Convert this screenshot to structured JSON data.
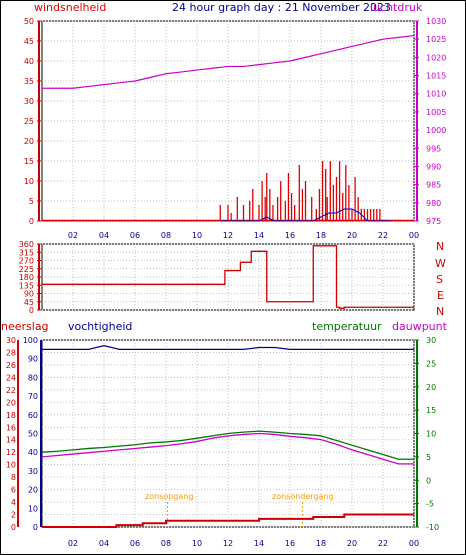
{
  "header": {
    "left_label": "windsnelheid",
    "title": "24 hour graph day : 21 November 2023",
    "right_label": "luchtdruk"
  },
  "panel2": {
    "direction_labels": [
      "N",
      "W",
      "S",
      "E",
      "N"
    ]
  },
  "panel3": {
    "label_neerslag": "neerslag",
    "label_vochtigheid": "vochtigheid",
    "label_temperatuur": "temperatuur",
    "label_dauwpunt": "dauwpunt",
    "zonsopgang": "zonsopgang",
    "zonsondergang": "zonsondergang"
  },
  "colors": {
    "wind": "#e00000",
    "pressure": "#cc00cc",
    "humidity": "#000099",
    "temperature": "#007700",
    "dewpoint": "#cc00cc",
    "rain": "#cc0000",
    "sun": "#ff9900",
    "wind_avg": "#0000cc",
    "grid": "#c0c0c0"
  },
  "chart_data": [
    {
      "type": "line",
      "name": "wind-and-pressure",
      "x_tick_labels": [
        "02",
        "04",
        "06",
        "08",
        "10",
        "12",
        "14",
        "16",
        "18",
        "20",
        "22",
        "00"
      ],
      "left_axis": {
        "label": "windsnelheid",
        "ylim": [
          0,
          50
        ],
        "ticks": [
          0,
          5,
          10,
          15,
          20,
          25,
          30,
          35,
          40,
          45,
          50
        ]
      },
      "right_axis": {
        "label": "luchtdruk",
        "ylim": [
          975,
          1030
        ],
        "ticks": [
          975,
          980,
          985,
          990,
          995,
          1000,
          1005,
          1010,
          1015,
          1020,
          1025,
          1030
        ]
      },
      "series": [
        {
          "name": "luchtdruk",
          "axis": "right",
          "x": [
            0,
            1,
            2,
            3,
            4,
            5,
            6,
            7,
            8,
            9,
            10,
            11,
            12,
            13,
            14,
            15,
            16,
            17,
            18,
            19,
            20,
            21,
            22,
            23,
            24
          ],
          "y": [
            1011.5,
            1011.5,
            1011.5,
            1012,
            1012.5,
            1013,
            1013.5,
            1014.5,
            1015.5,
            1016,
            1016.5,
            1017,
            1017.5,
            1017.5,
            1018,
            1018.5,
            1019,
            1020,
            1021,
            1022,
            1023,
            1024,
            1025,
            1025.5,
            1026
          ]
        },
        {
          "name": "windstoten",
          "axis": "left",
          "x_gust": [
            11.5,
            12,
            12.2,
            12.6,
            13,
            13.4,
            13.6,
            14,
            14.2,
            14.4,
            14.5,
            14.7,
            14.9,
            15.2,
            15.4,
            15.7,
            15.9,
            16.1,
            16.3,
            16.6,
            16.8,
            17.0,
            17.4,
            17.7,
            17.9,
            18.1,
            18.3,
            18.4,
            18.6,
            18.8,
            19.0,
            19.2,
            19.4,
            19.6,
            19.8,
            20.0,
            20.2,
            20.4,
            20.6,
            20.8,
            21.0,
            21.2,
            21.4,
            21.6,
            21.8
          ],
          "y_gust": [
            4,
            4,
            2,
            6,
            4,
            5,
            8,
            4,
            10,
            6,
            12,
            8,
            4,
            6,
            10,
            5,
            12,
            7,
            4,
            14,
            8,
            10,
            6,
            3,
            8,
            15,
            13,
            6,
            15,
            9,
            11,
            15,
            7,
            14,
            9,
            3,
            11,
            6,
            3,
            3,
            3,
            3,
            3,
            3,
            3
          ]
        },
        {
          "name": "gemiddelde wind",
          "axis": "left",
          "x": [
            11.5,
            12,
            13,
            14,
            14.5,
            15,
            16,
            17,
            17.5,
            18,
            18.5,
            19,
            19.5,
            20,
            20.5,
            21,
            22,
            22.5
          ],
          "y": [
            0,
            0,
            0,
            0,
            1,
            0,
            0,
            0,
            0,
            1,
            2,
            2,
            3,
            3,
            2,
            0,
            0,
            0
          ]
        }
      ]
    },
    {
      "type": "line",
      "name": "wind-direction",
      "x_tick_labels": [
        "02",
        "04",
        "06",
        "08",
        "10",
        "12",
        "14",
        "16",
        "18",
        "20",
        "22",
        "00"
      ],
      "ylim": [
        0,
        360
      ],
      "y_ticks": [
        0,
        45,
        90,
        135,
        180,
        225,
        270,
        315,
        360
      ],
      "series": [
        {
          "name": "windrichting",
          "x": [
            0,
            11.8,
            11.8,
            12.8,
            12.8,
            13.5,
            13.5,
            14.5,
            14.5,
            17.5,
            17.5,
            19.0,
            19.0,
            19.2,
            19.2,
            19.5,
            19.5,
            24
          ],
          "y": [
            140,
            140,
            215,
            215,
            260,
            260,
            320,
            320,
            45,
            45,
            350,
            350,
            15,
            15,
            10,
            10,
            15,
            15
          ]
        }
      ]
    },
    {
      "type": "line",
      "name": "humidity-temperature-rain",
      "x_tick_labels": [
        "02",
        "04",
        "06",
        "08",
        "10",
        "12",
        "14",
        "16",
        "18",
        "20",
        "22",
        "00"
      ],
      "left_axis_outer": {
        "label": "neerslag",
        "ylim": [
          0,
          30
        ],
        "ticks": [
          0,
          2,
          4,
          6,
          8,
          10,
          12,
          14,
          16,
          18,
          20,
          22,
          24,
          26,
          28,
          30
        ]
      },
      "left_axis_inner": {
        "label": "vochtigheid",
        "ylim": [
          0,
          100
        ],
        "ticks": [
          0,
          10,
          20,
          30,
          40,
          50,
          60,
          70,
          80,
          90,
          100
        ]
      },
      "right_axis": {
        "label": "temperatuur",
        "ylim": [
          -10,
          30
        ],
        "ticks": [
          -10,
          -5,
          0,
          5,
          10,
          15,
          20,
          25,
          30
        ]
      },
      "sun_events": {
        "zonsopgang_hour": 8.1,
        "zonsondergang_hour": 16.8
      },
      "series": [
        {
          "name": "vochtigheid",
          "axis": "inner",
          "x": [
            0,
            1,
            2,
            3,
            4,
            5,
            6,
            7,
            8,
            9,
            10,
            11,
            12,
            13,
            14,
            15,
            16,
            17,
            18,
            19,
            20,
            21,
            22,
            23,
            24
          ],
          "y": [
            95,
            95,
            95,
            95,
            97,
            95,
            95,
            95,
            95,
            95,
            95,
            95,
            95,
            95,
            96,
            96,
            95,
            95,
            95,
            95,
            95,
            95,
            95,
            95,
            95
          ]
        },
        {
          "name": "temperatuur",
          "axis": "right",
          "x": [
            0,
            1,
            2,
            3,
            4,
            5,
            6,
            7,
            8,
            9,
            10,
            11,
            12,
            13,
            14,
            15,
            16,
            17,
            18,
            19,
            20,
            21,
            22,
            23,
            24
          ],
          "y": [
            6,
            6.2,
            6.5,
            6.8,
            7,
            7.3,
            7.6,
            8,
            8.2,
            8.5,
            9,
            9.5,
            10,
            10.3,
            10.5,
            10.3,
            10,
            9.8,
            9.5,
            8.5,
            7.5,
            6.5,
            5.5,
            4.5,
            4.5
          ]
        },
        {
          "name": "dauwpunt",
          "axis": "right",
          "x": [
            0,
            1,
            2,
            3,
            4,
            5,
            6,
            7,
            8,
            9,
            10,
            11,
            12,
            13,
            14,
            15,
            16,
            17,
            18,
            19,
            20,
            21,
            22,
            23,
            24
          ],
          "y": [
            5,
            5.3,
            5.6,
            5.9,
            6.2,
            6.5,
            6.8,
            7.1,
            7.4,
            7.8,
            8.3,
            9,
            9.5,
            9.8,
            10,
            9.8,
            9.4,
            9.1,
            8.7,
            7.7,
            6.5,
            5.5,
            4.5,
            3.5,
            3.5
          ]
        },
        {
          "name": "neerslag",
          "axis": "outer",
          "x": [
            0,
            4.8,
            4.8,
            6.5,
            6.5,
            8,
            8,
            12,
            12,
            14,
            14,
            17.5,
            17.5,
            19.5,
            19.5,
            24
          ],
          "y": [
            0,
            0,
            0.3,
            0.3,
            0.6,
            0.6,
            1.0,
            1.0,
            1.0,
            1.0,
            1.3,
            1.3,
            1.6,
            1.6,
            2.0,
            2.0
          ]
        }
      ]
    }
  ]
}
